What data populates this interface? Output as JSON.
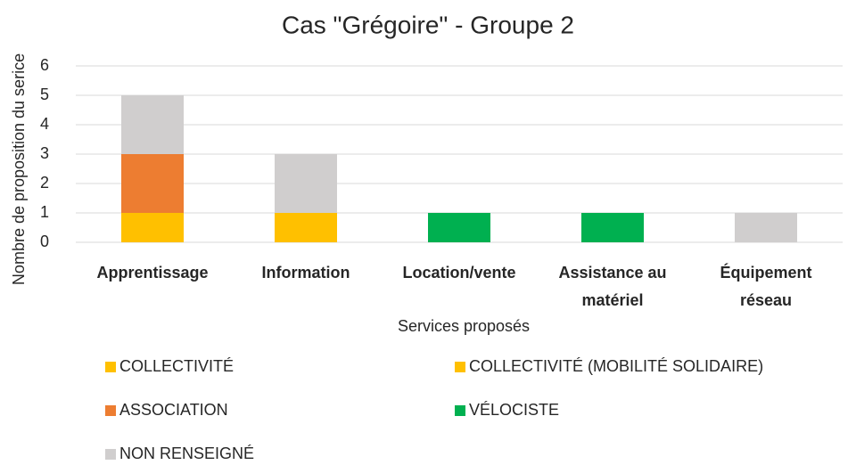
{
  "chart_data": {
    "type": "stacked_bar",
    "title": "Cas \"Grégoire\" - Groupe 2",
    "x_label": "Services proposés",
    "y_label": "Nombre de proposition du serice",
    "categories": [
      "Apprentissage",
      "Information",
      "Location/vente",
      "Assistance au matériel",
      "Équipement réseau"
    ],
    "series": [
      {
        "name": "COLLECTIVITÉ",
        "color": "#FFC000",
        "values": [
          1,
          1,
          0,
          0,
          0
        ]
      },
      {
        "name": "COLLECTIVITÉ (MOBILITÉ SOLIDAIRE)",
        "color": "#FFC000",
        "values": [
          0,
          0,
          0,
          0,
          0
        ]
      },
      {
        "name": "ASSOCIATION",
        "color": "#ED7D31",
        "values": [
          2,
          0,
          0,
          0,
          0
        ]
      },
      {
        "name": "VÉLOCISTE",
        "color": "#00B050",
        "values": [
          0,
          0,
          1,
          1,
          0
        ]
      },
      {
        "name": "NON RENSEIGNÉ",
        "color": "#D0CECE",
        "values": [
          2,
          2,
          0,
          0,
          1
        ]
      }
    ],
    "ylim": [
      0,
      6
    ],
    "yticks": [
      0,
      1,
      2,
      3,
      4,
      5,
      6
    ],
    "grid": true,
    "legend": "bottom"
  }
}
